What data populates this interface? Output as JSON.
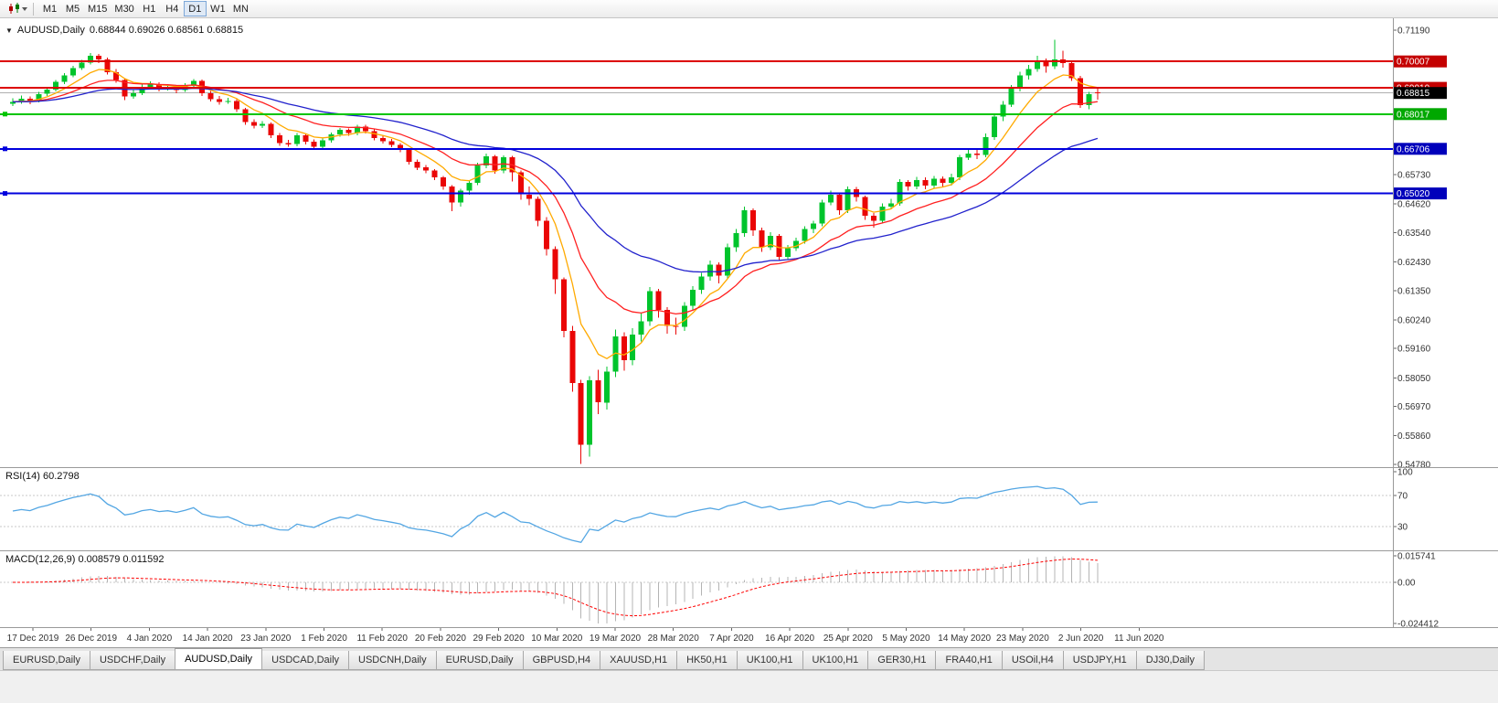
{
  "toolbar": {
    "timeframes": [
      "M1",
      "M5",
      "M15",
      "M30",
      "H1",
      "H4",
      "D1",
      "W1",
      "MN"
    ],
    "active_timeframe": "D1"
  },
  "chart_header": {
    "collapse_arrow": "▼",
    "symbol": "AUDUSD,Daily",
    "ohlc": "0.68844 0.69026 0.68561 0.68815"
  },
  "indicator_labels": {
    "rsi": "RSI(14) 60.2798",
    "macd": "MACD(12,26,9) 0.008579 0.011592"
  },
  "chart_data": {
    "type": "candlestick",
    "symbol": "AUDUSD",
    "timeframe": "Daily",
    "y_axis": {
      "max": 0.7119,
      "min": 0.5478,
      "tick_labels": [
        "0.71190",
        "0.65730",
        "0.64620",
        "0.63540",
        "0.62430",
        "0.61350",
        "0.60240",
        "0.59160",
        "0.58050",
        "0.56970",
        "0.55860",
        "0.54780"
      ]
    },
    "x_axis": {
      "date_labels": [
        "17 Dec 2019",
        "26 Dec 2019",
        "4 Jan 2020",
        "14 Jan 2020",
        "23 Jan 2020",
        "1 Feb 2020",
        "11 Feb 2020",
        "20 Feb 2020",
        "29 Feb 2020",
        "10 Mar 2020",
        "19 Mar 2020",
        "28 Mar 2020",
        "7 Apr 2020",
        "16 Apr 2020",
        "25 Apr 2020",
        "5 May 2020",
        "14 May 2020",
        "23 May 2020",
        "2 Jun 2020",
        "11 Jun 2020"
      ]
    },
    "ohlc": [
      [
        0.684,
        0.6862,
        0.6833,
        0.6848
      ],
      [
        0.6848,
        0.6872,
        0.6841,
        0.686
      ],
      [
        0.686,
        0.6868,
        0.6839,
        0.6852
      ],
      [
        0.6852,
        0.6886,
        0.6846,
        0.6878
      ],
      [
        0.6878,
        0.6904,
        0.687,
        0.6895
      ],
      [
        0.6895,
        0.6931,
        0.6888,
        0.6923
      ],
      [
        0.6923,
        0.6956,
        0.6916,
        0.6948
      ],
      [
        0.6948,
        0.6984,
        0.6941,
        0.6975
      ],
      [
        0.6975,
        0.7006,
        0.6968,
        0.6996
      ],
      [
        0.6996,
        0.7032,
        0.699,
        0.7022
      ],
      [
        0.7022,
        0.7029,
        0.6994,
        0.7008
      ],
      [
        0.7008,
        0.7015,
        0.6952,
        0.696
      ],
      [
        0.696,
        0.6972,
        0.6921,
        0.693
      ],
      [
        0.693,
        0.6938,
        0.6855,
        0.6868
      ],
      [
        0.6868,
        0.6892,
        0.686,
        0.688
      ],
      [
        0.688,
        0.6914,
        0.6874,
        0.6905
      ],
      [
        0.6905,
        0.6926,
        0.6898,
        0.6915
      ],
      [
        0.6915,
        0.6922,
        0.6887,
        0.6898
      ],
      [
        0.6898,
        0.6916,
        0.6891,
        0.6905
      ],
      [
        0.6905,
        0.6911,
        0.688,
        0.6892
      ],
      [
        0.6892,
        0.6918,
        0.6885,
        0.6908
      ],
      [
        0.6908,
        0.6934,
        0.6899,
        0.6928
      ],
      [
        0.6928,
        0.6933,
        0.6871,
        0.688
      ],
      [
        0.688,
        0.6889,
        0.6849,
        0.6858
      ],
      [
        0.6858,
        0.687,
        0.6838,
        0.6848
      ],
      [
        0.6848,
        0.6864,
        0.6841,
        0.6852
      ],
      [
        0.6852,
        0.6858,
        0.681,
        0.682
      ],
      [
        0.682,
        0.6826,
        0.6762,
        0.6772
      ],
      [
        0.6772,
        0.6782,
        0.6748,
        0.6758
      ],
      [
        0.6758,
        0.6776,
        0.675,
        0.6765
      ],
      [
        0.6765,
        0.677,
        0.6712,
        0.6722
      ],
      [
        0.6722,
        0.673,
        0.6682,
        0.6692
      ],
      [
        0.6692,
        0.6704,
        0.6678,
        0.6688
      ],
      [
        0.6688,
        0.673,
        0.668,
        0.6722
      ],
      [
        0.6722,
        0.6728,
        0.6688,
        0.6698
      ],
      [
        0.6698,
        0.6706,
        0.6668,
        0.6678
      ],
      [
        0.6678,
        0.671,
        0.667,
        0.6702
      ],
      [
        0.6702,
        0.6732,
        0.6694,
        0.6725
      ],
      [
        0.6725,
        0.675,
        0.6717,
        0.6742
      ],
      [
        0.6742,
        0.6748,
        0.672,
        0.673
      ],
      [
        0.673,
        0.6762,
        0.6722,
        0.6755
      ],
      [
        0.6755,
        0.6761,
        0.6728,
        0.6738
      ],
      [
        0.6738,
        0.6744,
        0.6702,
        0.6712
      ],
      [
        0.6712,
        0.672,
        0.669,
        0.67
      ],
      [
        0.67,
        0.6708,
        0.6676,
        0.6685
      ],
      [
        0.6685,
        0.6692,
        0.6658,
        0.6668
      ],
      [
        0.6668,
        0.6672,
        0.6612,
        0.6622
      ],
      [
        0.6622,
        0.663,
        0.659,
        0.66
      ],
      [
        0.66,
        0.661,
        0.6578,
        0.6588
      ],
      [
        0.6588,
        0.6594,
        0.6552,
        0.6562
      ],
      [
        0.6562,
        0.6568,
        0.6516,
        0.6528
      ],
      [
        0.6528,
        0.6534,
        0.6435,
        0.6468
      ],
      [
        0.6468,
        0.652,
        0.6452,
        0.6512
      ],
      [
        0.6512,
        0.6552,
        0.6498,
        0.6542
      ],
      [
        0.6542,
        0.6618,
        0.6534,
        0.6608
      ],
      [
        0.6608,
        0.6652,
        0.6598,
        0.6642
      ],
      [
        0.6642,
        0.6648,
        0.6576,
        0.6588
      ],
      [
        0.6588,
        0.6645,
        0.6578,
        0.6638
      ],
      [
        0.6638,
        0.6644,
        0.6548,
        0.6582
      ],
      [
        0.6582,
        0.6588,
        0.6478,
        0.6498
      ],
      [
        0.6498,
        0.6528,
        0.6458,
        0.6482
      ],
      [
        0.6482,
        0.649,
        0.6378,
        0.6398
      ],
      [
        0.6398,
        0.6412,
        0.6268,
        0.6292
      ],
      [
        0.6292,
        0.6302,
        0.6122,
        0.6178
      ],
      [
        0.6178,
        0.6184,
        0.5958,
        0.5982
      ],
      [
        0.5982,
        0.6002,
        0.5752,
        0.5785
      ],
      [
        0.5785,
        0.5798,
        0.548,
        0.5552
      ],
      [
        0.5552,
        0.5812,
        0.5508,
        0.5795
      ],
      [
        0.5795,
        0.5836,
        0.5668,
        0.5712
      ],
      [
        0.5712,
        0.5848,
        0.5685,
        0.5828
      ],
      [
        0.5828,
        0.5988,
        0.5808,
        0.5962
      ],
      [
        0.5962,
        0.5978,
        0.5832,
        0.5872
      ],
      [
        0.5872,
        0.5992,
        0.5852,
        0.5968
      ],
      [
        0.5968,
        0.6048,
        0.5942,
        0.6018
      ],
      [
        0.6018,
        0.6148,
        0.6002,
        0.6132
      ],
      [
        0.6132,
        0.6142,
        0.6032,
        0.6062
      ],
      [
        0.6062,
        0.6072,
        0.5972,
        0.6002
      ],
      [
        0.6002,
        0.6032,
        0.5968,
        0.5998
      ],
      [
        0.5998,
        0.6092,
        0.5982,
        0.6078
      ],
      [
        0.6078,
        0.6152,
        0.6062,
        0.6138
      ],
      [
        0.6138,
        0.6202,
        0.6122,
        0.6188
      ],
      [
        0.6188,
        0.6248,
        0.6172,
        0.6232
      ],
      [
        0.6232,
        0.6242,
        0.6162,
        0.6192
      ],
      [
        0.6192,
        0.6312,
        0.6178,
        0.6298
      ],
      [
        0.6298,
        0.6368,
        0.6282,
        0.6352
      ],
      [
        0.6352,
        0.6452,
        0.6338,
        0.6438
      ],
      [
        0.6438,
        0.6446,
        0.6342,
        0.6362
      ],
      [
        0.6362,
        0.6372,
        0.6282,
        0.6298
      ],
      [
        0.6298,
        0.6356,
        0.6288,
        0.6342
      ],
      [
        0.6342,
        0.6348,
        0.6248,
        0.6262
      ],
      [
        0.6262,
        0.6308,
        0.6252,
        0.6295
      ],
      [
        0.6295,
        0.6335,
        0.6285,
        0.6322
      ],
      [
        0.6322,
        0.6378,
        0.6312,
        0.6368
      ],
      [
        0.6368,
        0.6398,
        0.6352,
        0.6388
      ],
      [
        0.6388,
        0.6478,
        0.6378,
        0.6468
      ],
      [
        0.6468,
        0.6512,
        0.6458,
        0.6498
      ],
      [
        0.6498,
        0.6504,
        0.6422,
        0.6438
      ],
      [
        0.6438,
        0.6528,
        0.6428,
        0.6518
      ],
      [
        0.6518,
        0.6526,
        0.6472,
        0.6488
      ],
      [
        0.6488,
        0.6494,
        0.6402,
        0.6418
      ],
      [
        0.6418,
        0.6428,
        0.6372,
        0.6398
      ],
      [
        0.6398,
        0.6464,
        0.6388,
        0.6452
      ],
      [
        0.6452,
        0.6482,
        0.6442,
        0.6465
      ],
      [
        0.6465,
        0.6556,
        0.6455,
        0.6545
      ],
      [
        0.6545,
        0.6552,
        0.6512,
        0.6528
      ],
      [
        0.6528,
        0.6564,
        0.6518,
        0.6552
      ],
      [
        0.6552,
        0.6562,
        0.6518,
        0.6532
      ],
      [
        0.6532,
        0.6568,
        0.6522,
        0.6558
      ],
      [
        0.6558,
        0.6566,
        0.6528,
        0.6542
      ],
      [
        0.6542,
        0.6576,
        0.6532,
        0.6562
      ],
      [
        0.6562,
        0.6648,
        0.6552,
        0.6638
      ],
      [
        0.6638,
        0.6672,
        0.6628,
        0.6652
      ],
      [
        0.6652,
        0.6668,
        0.6632,
        0.6648
      ],
      [
        0.6648,
        0.6728,
        0.6638,
        0.6715
      ],
      [
        0.6715,
        0.6802,
        0.6705,
        0.6792
      ],
      [
        0.6792,
        0.6852,
        0.6776,
        0.6838
      ],
      [
        0.6838,
        0.6912,
        0.6828,
        0.6898
      ],
      [
        0.6898,
        0.6962,
        0.6888,
        0.6948
      ],
      [
        0.6948,
        0.6988,
        0.6932,
        0.6972
      ],
      [
        0.6972,
        0.7022,
        0.6962,
        0.7002
      ],
      [
        0.7002,
        0.7012,
        0.6958,
        0.6982
      ],
      [
        0.6982,
        0.7082,
        0.6972,
        0.7008
      ],
      [
        0.7008,
        0.7042,
        0.6978,
        0.6995
      ],
      [
        0.6995,
        0.7002,
        0.6928,
        0.6938
      ],
      [
        0.6938,
        0.6946,
        0.6826,
        0.6836
      ],
      [
        0.6836,
        0.6886,
        0.682,
        0.6878
      ],
      [
        0.68844,
        0.69026,
        0.68561,
        0.68815
      ]
    ],
    "levels": [
      {
        "price": 0.70007,
        "label": "0.70007",
        "color": "#dd0000",
        "label_bg": "#c40000",
        "width": 2,
        "left_handle": false
      },
      {
        "price": 0.6901,
        "label": "0.69010",
        "color": "#dd0000",
        "label_bg": "#c40000",
        "width": 2,
        "left_handle": false
      },
      {
        "price": 0.68017,
        "label": "0.68017",
        "color": "#00c400",
        "label_bg": "#00a800",
        "width": 2,
        "left_handle": true
      },
      {
        "price": 0.66706,
        "label": "0.66706",
        "color": "#0000dd",
        "label_bg": "#0000bb",
        "width": 2,
        "left_handle": true
      },
      {
        "price": 0.6502,
        "label": "0.65020",
        "color": "#0000dd",
        "label_bg": "#0000bb",
        "width": 2,
        "left_handle": true
      }
    ],
    "current_price": {
      "value": 0.68815,
      "label": "0.68815",
      "label_bg": "#000000",
      "line_color": "#b0b0b0"
    },
    "moving_averages": [
      {
        "type": "EMA",
        "period": 7,
        "color": "#ffaa00"
      },
      {
        "type": "EMA",
        "period": 16,
        "color": "#ff2020"
      },
      {
        "type": "EMA",
        "period": 34,
        "color": "#2121cc"
      }
    ],
    "candle_colors": {
      "up": "#00c42c",
      "down": "#ea0606"
    },
    "rsi": {
      "name": "RSI",
      "period": 14,
      "current": 60.2798,
      "color": "#53a6e3",
      "levels": [
        70,
        30
      ],
      "scale_labels": [
        "100",
        "70",
        "30"
      ],
      "scale_max": 100,
      "scale_min": 0
    },
    "macd": {
      "name": "MACD",
      "fast": 12,
      "slow": 26,
      "signal": 9,
      "macd_current": 0.008579,
      "signal_current": 0.011592,
      "histogram_color": "#b4b4b4",
      "signal_color": "#ff0000",
      "scale_labels": [
        "0.015741",
        "0.00",
        "-0.024412"
      ],
      "scale_max": 0.015741,
      "scale_min": -0.024412
    }
  },
  "tabs": [
    "EURUSD,Daily",
    "USDCHF,Daily",
    "AUDUSD,Daily",
    "USDCAD,Daily",
    "USDCNH,Daily",
    "EURUSD,Daily",
    "GBPUSD,H4",
    "XAUUSD,H1",
    "HK50,H1",
    "UK100,H1",
    "UK100,H1",
    "GER30,H1",
    "FRA40,H1",
    "USOil,H4",
    "USDJPY,H1",
    "DJ30,Daily"
  ],
  "active_tab_index": 2
}
